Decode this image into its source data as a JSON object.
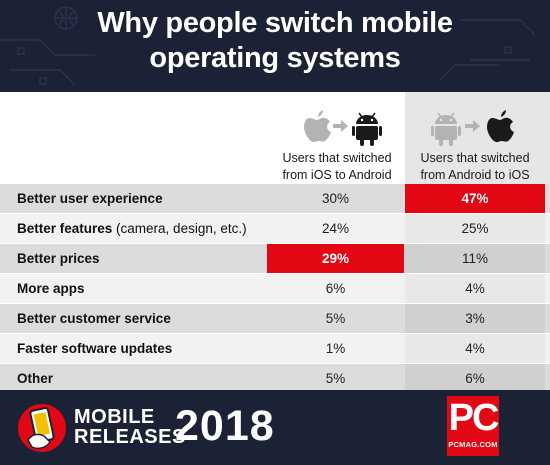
{
  "header": {
    "title_line1": "Why people switch mobile",
    "title_line2": "operating systems"
  },
  "chart_data": {
    "type": "table",
    "columns": [
      {
        "from_icon": "apple-icon",
        "to_icon": "android-icon",
        "label_line1": "Users that switched",
        "label_line2": "from iOS to Android"
      },
      {
        "from_icon": "android-icon",
        "to_icon": "apple-icon",
        "label_line1": "Users that switched",
        "label_line2": "from Android to iOS"
      }
    ],
    "rows": [
      {
        "category": "Better user experience",
        "extra": "",
        "values": [
          "30%",
          "47%"
        ],
        "highlight": [
          false,
          true
        ]
      },
      {
        "category": "Better features",
        "extra": " (camera, design, etc.)",
        "values": [
          "24%",
          "25%"
        ],
        "highlight": [
          false,
          false
        ]
      },
      {
        "category": "Better prices",
        "extra": "",
        "values": [
          "29%",
          "11%"
        ],
        "highlight": [
          true,
          false
        ]
      },
      {
        "category": "More apps",
        "extra": "",
        "values": [
          "6%",
          "4%"
        ],
        "highlight": [
          false,
          false
        ]
      },
      {
        "category": "Better customer service",
        "extra": "",
        "values": [
          "5%",
          "3%"
        ],
        "highlight": [
          false,
          false
        ]
      },
      {
        "category": "Faster software updates",
        "extra": "",
        "values": [
          "1%",
          "4%"
        ],
        "highlight": [
          false,
          false
        ]
      },
      {
        "category": "Other",
        "extra": "",
        "values": [
          "5%",
          "6%"
        ],
        "highlight": [
          false,
          false
        ]
      }
    ],
    "highlight_color": "#e30613"
  },
  "footer": {
    "line1": "MOBILE",
    "line2": "RELEASES",
    "year": "2018",
    "logo_text": "PC",
    "logo_site": "PCMAG.COM"
  },
  "colors": {
    "navy": "#1c2235",
    "red": "#e30613",
    "icon_grey": "#b3b3b3",
    "icon_dark": "#1a1a1a"
  }
}
